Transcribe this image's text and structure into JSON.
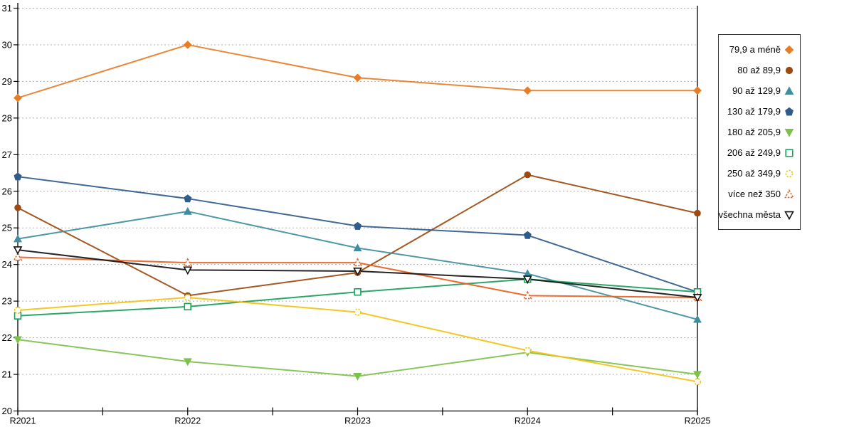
{
  "chart_data": {
    "type": "line",
    "title": "",
    "xlabel": "",
    "ylabel": "",
    "categories": [
      "R2021",
      "R2022",
      "R2023",
      "R2024",
      "R2025"
    ],
    "y_ticks": [
      20,
      21,
      22,
      23,
      24,
      25,
      26,
      27,
      28,
      29,
      30,
      31
    ],
    "ylim": [
      20,
      31
    ],
    "grid": "horizontal-dotted",
    "legend_position": "right",
    "series": [
      {
        "name": "79,9 a méně",
        "marker": "diamond",
        "fill": "solid",
        "dashed_outline": false,
        "color": "#E87D26",
        "values": [
          28.55,
          30.0,
          29.1,
          28.75,
          28.75
        ]
      },
      {
        "name": "80 až 89,9",
        "marker": "circle",
        "fill": "solid",
        "dashed_outline": false,
        "color": "#9C4A10",
        "values": [
          25.55,
          23.15,
          23.78,
          26.45,
          25.4
        ]
      },
      {
        "name": "90 až 129,9",
        "marker": "triangle-up",
        "fill": "solid",
        "dashed_outline": false,
        "color": "#3F8EA0",
        "values": [
          24.7,
          25.45,
          24.45,
          23.75,
          22.5
        ]
      },
      {
        "name": "130 až 179,9",
        "marker": "pentagon",
        "fill": "solid",
        "dashed_outline": false,
        "color": "#305C8C",
        "values": [
          26.4,
          25.8,
          25.05,
          24.8,
          23.25
        ]
      },
      {
        "name": "180 až 205,9",
        "marker": "triangle-down",
        "fill": "solid",
        "dashed_outline": false,
        "color": "#7CC24A",
        "values": [
          21.95,
          21.35,
          20.95,
          21.6,
          21.0
        ]
      },
      {
        "name": "206 až 249,9",
        "marker": "square",
        "fill": "hollow",
        "dashed_outline": false,
        "color": "#18A05A",
        "values": [
          22.6,
          22.85,
          23.25,
          23.6,
          23.25
        ]
      },
      {
        "name": "250 až 349,9",
        "marker": "circle",
        "fill": "hollow",
        "dashed_outline": true,
        "color": "#F2C211",
        "values": [
          22.75,
          23.1,
          22.7,
          21.65,
          20.8
        ]
      },
      {
        "name": "více než 350",
        "marker": "triangle-up",
        "fill": "hollow",
        "dashed_outline": true,
        "color": "#E8601E",
        "values": [
          24.2,
          24.05,
          24.05,
          23.15,
          23.1
        ]
      },
      {
        "name": "všechna města",
        "marker": "triangle-down",
        "fill": "hollow",
        "dashed_outline": false,
        "color": "#141414",
        "values": [
          24.4,
          23.85,
          23.82,
          23.6,
          23.1
        ]
      }
    ],
    "axis_color": "#000000",
    "grid_color": "#b0b0b0"
  }
}
